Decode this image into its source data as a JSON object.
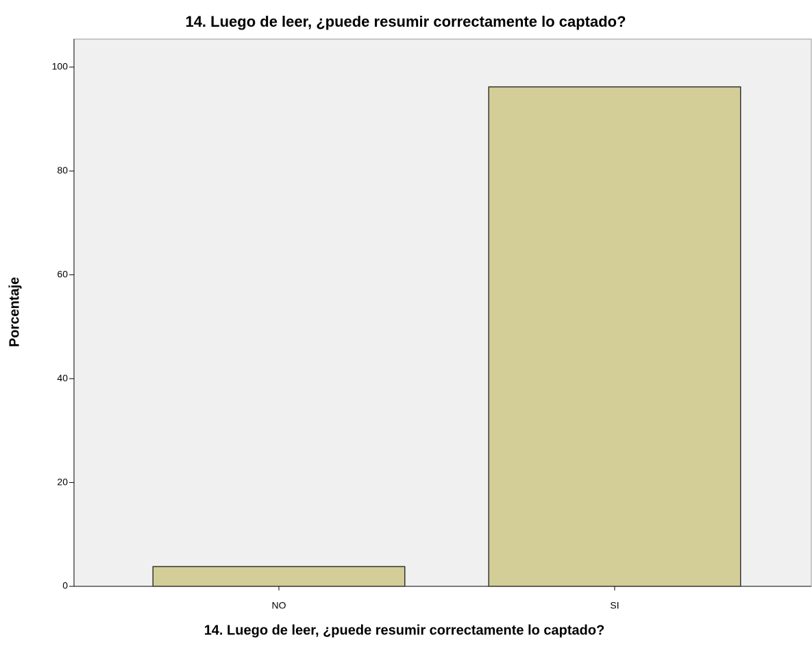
{
  "chart_data": {
    "type": "bar",
    "title": "14. Luego de leer, ¿puede resumir correctamente lo captado?",
    "x_label": "14. Luego de leer, ¿puede resumir correctamente lo captado?",
    "y_label": "Porcentaje",
    "categories": [
      "NO",
      "SI"
    ],
    "values": [
      3.8,
      96.2
    ],
    "color": "#d3ce97",
    "ylim": [
      0,
      105.4
    ],
    "yticks": [
      0,
      20,
      40,
      60,
      80,
      100
    ],
    "grid": false
  }
}
